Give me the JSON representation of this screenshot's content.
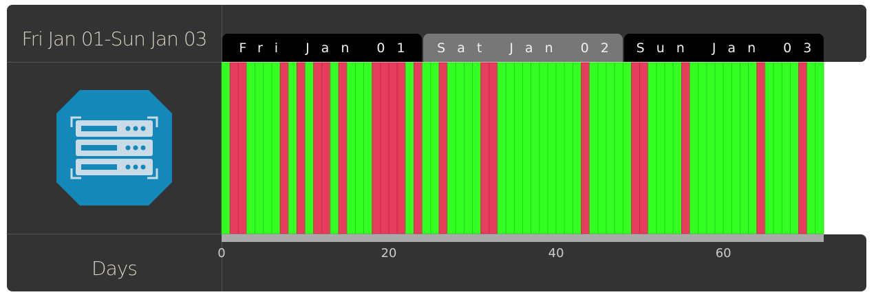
{
  "header": {
    "range_label": "Fri Jan 01-Sun Jan 03"
  },
  "footer": {
    "axis_title": "Days"
  },
  "day_tabs": [
    {
      "label": "Fri Jan 01",
      "start": 0,
      "end": 24
    },
    {
      "label": "Sat Jan 02",
      "start": 24,
      "end": 48
    },
    {
      "label": "Sun Jan 03",
      "start": 48,
      "end": 72
    }
  ],
  "icon": {
    "name": "server-icon",
    "color": "#1488b8"
  },
  "chart_data": {
    "type": "bar",
    "xlabel": "Days",
    "xlim": [
      0,
      72
    ],
    "xticks": [
      0,
      20,
      40,
      60
    ],
    "colors": {
      "up": "#33ff22",
      "down": "#e63d5c"
    },
    "segment_width": 1,
    "down_segments": [
      1,
      2,
      7,
      9,
      11,
      12,
      14,
      18,
      19,
      20,
      21,
      23,
      26,
      31,
      32,
      43,
      49,
      50,
      55,
      64,
      69
    ]
  }
}
